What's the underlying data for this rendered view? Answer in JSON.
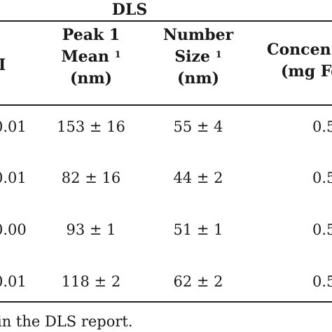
{
  "table": {
    "group_header": "DLS",
    "columns": [
      {
        "line1": "Peak 1",
        "line2": "Mean",
        "sup": "1",
        "line3": "(nm)"
      },
      {
        "line1": "Number",
        "line2": "Size",
        "sup": "1",
        "line3": "(nm)"
      },
      {
        "line1": "Concen",
        "line2": "(mg Fe",
        "line3": ""
      }
    ],
    "partial_left_header": "I",
    "rows": [
      {
        "pdi": "0.01",
        "peak1": "153 ± 16",
        "number_size": "55 ± 4",
        "conc": "0.5"
      },
      {
        "pdi": "0.01",
        "peak1": "82 ± 16",
        "number_size": "44 ± 2",
        "conc": "0.5"
      },
      {
        "pdi": "0.00",
        "peak1": "93 ± 1",
        "number_size": "51 ± 1",
        "conc": "0.5"
      },
      {
        "pdi": "0.01",
        "peak1": "118 ± 2",
        "number_size": "62 ± 2",
        "conc": "0.5"
      }
    ]
  },
  "footnote": "in the DLS report."
}
